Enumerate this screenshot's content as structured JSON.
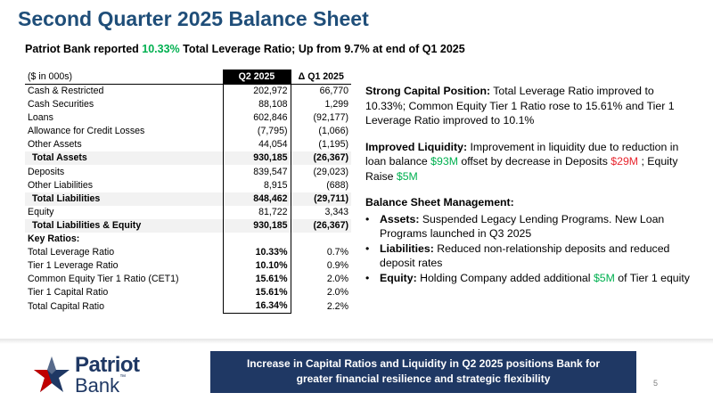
{
  "title": "Second Quarter 2025 Balance Sheet",
  "subtitle": {
    "prefix": "Patriot Bank reported ",
    "highlight": "10.33%",
    "suffix": " Total Leverage Ratio; Up from 9.7% at end of Q1 2025"
  },
  "table": {
    "header": {
      "label": "($ in 000s)",
      "q2": "Q2 2025",
      "change": "Δ Q1 2025"
    },
    "rows": [
      {
        "label": "Cash & Restricted",
        "q2": "202,972",
        "change": "66,770"
      },
      {
        "label": "Cash Securities",
        "q2": "88,108",
        "change": "1,299"
      },
      {
        "label": "Loans",
        "q2": "602,846",
        "change": "(92,177)"
      },
      {
        "label": "Allowance for Credit Losses",
        "q2": "(7,795)",
        "change": "(1,066)"
      },
      {
        "label": "Other Assets",
        "q2": "44,054",
        "change": "(1,195)"
      },
      {
        "label": "Total Assets",
        "q2": "930,185",
        "change": "(26,367)"
      },
      {
        "label": "Deposits",
        "q2": "839,547",
        "change": "(29,023)"
      },
      {
        "label": "Other Liabilities",
        "q2": "8,915",
        "change": "(688)"
      },
      {
        "label": "Total Liabilities",
        "q2": "848,462",
        "change": "(29,711)"
      },
      {
        "label": "Equity",
        "q2": "81,722",
        "change": "3,343"
      },
      {
        "label": "Total Liabilities & Equity",
        "q2": "930,185",
        "change": "(26,367)"
      },
      {
        "label": "Key Ratios:",
        "q2": "",
        "change": ""
      },
      {
        "label": "Total Leverage Ratio",
        "q2": "10.33%",
        "change": "0.7%"
      },
      {
        "label": "Tier 1 Leverage Ratio",
        "q2": "10.10%",
        "change": "0.9%"
      },
      {
        "label": "Common Equity Tier 1 Ratio (CET1)",
        "q2": "15.61%",
        "change": "2.0%"
      },
      {
        "label": "Tier 1 Capital Ratio",
        "q2": "15.61%",
        "change": "2.0%"
      },
      {
        "label": "Total Capital Ratio",
        "q2": "16.34%",
        "change": "2.2%"
      }
    ]
  },
  "capital": {
    "heading": "Strong Capital Position:",
    "text": " Total Leverage Ratio improved to 10.33%; Common Equity Tier 1 Ratio rose to 15.61% and Tier 1 Leverage Ratio improved to 10.1%"
  },
  "liquidity": {
    "heading": "Improved Liquidity:",
    "text1": " Improvement in liquidity due to reduction in loan balance ",
    "loan_amount": "$93M",
    "text2": " offset by decrease in Deposits ",
    "deposit_amount": "$29M",
    "text3": " ; Equity Raise ",
    "equity_amount": "$5M"
  },
  "management": {
    "heading": "Balance Sheet Management:",
    "bullet_glyph": "•",
    "assets_heading": "Assets:",
    "assets_text": " Suspended Legacy Lending Programs. New Loan Programs launched in Q3 2025",
    "liabilities_heading": "Liabilities:",
    "liabilities_text": " Reduced non-relationship deposits and reduced deposit rates",
    "equity_heading": "Equity:",
    "equity_text1": " Holding Company added additional ",
    "equity_amount": "$5M",
    "equity_text2": " of Tier 1 equity"
  },
  "logo": {
    "line1": "Patriot",
    "line2": "Bank",
    "tm": "™"
  },
  "callout": {
    "line1": "Increase in Capital Ratios and Liquidity in Q2 2025 positions Bank for",
    "line2": "greater financial resilience and strategic flexibility"
  },
  "page_number": "5",
  "colors": {
    "title": "#1f4e79",
    "green": "#00b050",
    "red": "#e8262f",
    "navy": "#1f3864"
  }
}
